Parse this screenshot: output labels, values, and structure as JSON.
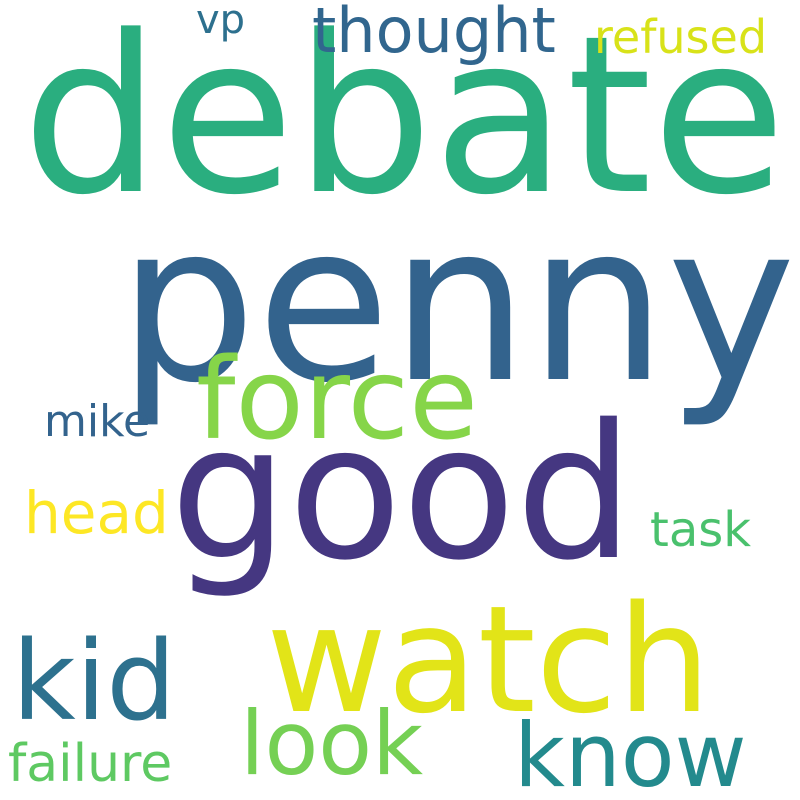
{
  "wordcloud": {
    "words": [
      {
        "id": "debate",
        "text": "debate",
        "color": "#2aae7f"
      },
      {
        "id": "penny",
        "text": "penny",
        "color": "#33638d"
      },
      {
        "id": "good",
        "text": "good",
        "color": "#453781"
      },
      {
        "id": "watch",
        "text": "watch",
        "color": "#e2e418"
      },
      {
        "id": "force",
        "text": "force",
        "color": "#86d549"
      },
      {
        "id": "kid",
        "text": "kid",
        "color": "#2d718e"
      },
      {
        "id": "look",
        "text": "look",
        "color": "#75d054"
      },
      {
        "id": "know",
        "text": "know",
        "color": "#238a8d"
      },
      {
        "id": "thought",
        "text": "thought",
        "color": "#31668e"
      },
      {
        "id": "refused",
        "text": "refused",
        "color": "#d8e219"
      },
      {
        "id": "head",
        "text": "head",
        "color": "#fde725"
      },
      {
        "id": "failure",
        "text": "failure",
        "color": "#5ec962"
      },
      {
        "id": "task",
        "text": "task",
        "color": "#4ac16d"
      },
      {
        "id": "mike",
        "text": "mike",
        "color": "#33638d"
      },
      {
        "id": "vp",
        "text": "vp",
        "color": "#2d708e"
      }
    ]
  }
}
